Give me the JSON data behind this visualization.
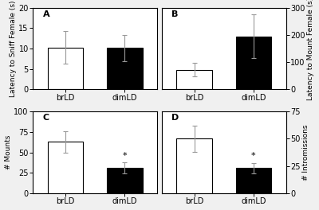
{
  "panels": [
    {
      "label": "A",
      "ylabel": "Latency to Sniff Female (s)",
      "ylim": [
        0,
        20
      ],
      "yticks": [
        0,
        5,
        10,
        15,
        20
      ],
      "brLD_val": 10.2,
      "brLD_err": 4.0,
      "dimLD_val": 10.1,
      "dimLD_err": 3.2,
      "sig": false,
      "ylabel_side": "left"
    },
    {
      "label": "B",
      "ylabel": "Latency to Mount Female (s)",
      "ylim": [
        0,
        300
      ],
      "yticks": [
        0,
        100,
        200,
        300
      ],
      "brLD_val": 72,
      "brLD_err": 25,
      "dimLD_val": 195,
      "dimLD_err": 80,
      "sig": false,
      "ylabel_side": "right"
    },
    {
      "label": "C",
      "ylabel": "# Mounts",
      "ylim": [
        0,
        100
      ],
      "yticks": [
        0,
        25,
        50,
        75,
        100
      ],
      "brLD_val": 63,
      "brLD_err": 13,
      "dimLD_val": 31,
      "dimLD_err": 7,
      "sig": true,
      "ylabel_side": "left"
    },
    {
      "label": "D",
      "ylabel": "# Intromissions",
      "ylim": [
        0,
        75
      ],
      "yticks": [
        0,
        25,
        50,
        75
      ],
      "brLD_val": 50,
      "brLD_err": 12,
      "dimLD_val": 23,
      "dimLD_err": 5,
      "sig": true,
      "ylabel_side": "right"
    }
  ],
  "bar_colors": [
    "white",
    "black"
  ],
  "bar_edgecolor": "black",
  "categories": [
    "brLD",
    "dimLD"
  ],
  "bar_width": 0.6,
  "bg_color": "#f0f0f0",
  "panel_bg": "white",
  "fontsize_label": 6.5,
  "fontsize_tick": 7,
  "fontsize_panel_label": 8,
  "capsize": 2.5,
  "elinewidth": 0.8,
  "ecolor": "#999999"
}
